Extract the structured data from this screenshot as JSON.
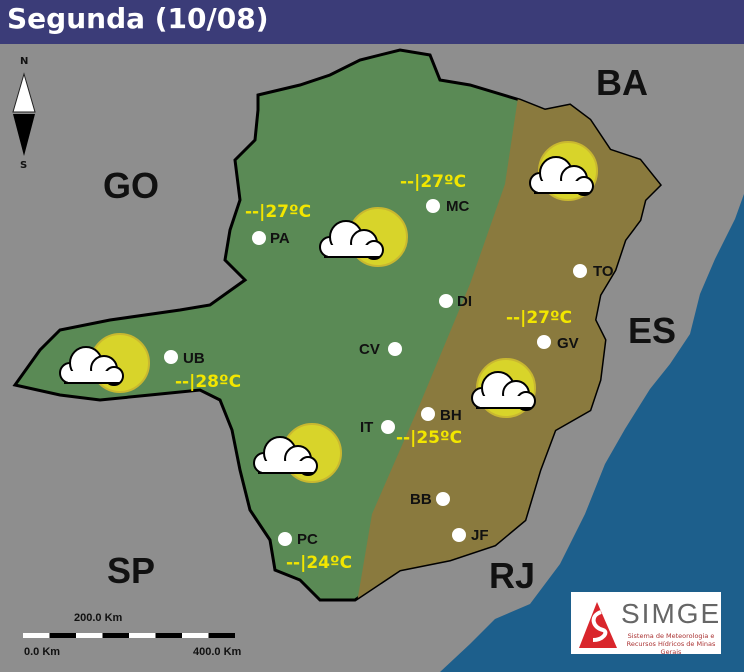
{
  "title": "Segunda (10/08)",
  "compass": {
    "north": "N",
    "south": "S"
  },
  "regions": [
    "GO",
    "BA",
    "ES",
    "SP",
    "RJ"
  ],
  "cities": [
    {
      "code": "PA",
      "temp": "--|27ºC",
      "weather": "sun-cloud"
    },
    {
      "code": "MC",
      "temp": "--|27ºC",
      "weather": "sun-cloud"
    },
    {
      "code": "DI"
    },
    {
      "code": "TO"
    },
    {
      "code": "CV"
    },
    {
      "code": "UB",
      "temp": "--|28ºC",
      "weather": "sun-cloud"
    },
    {
      "code": "GV",
      "temp": "--|27ºC",
      "weather": "sun-cloud"
    },
    {
      "code": "BH"
    },
    {
      "code": "IT",
      "temp": "--|25ºC",
      "weather": "sun-cloud"
    },
    {
      "code": "BB"
    },
    {
      "code": "JF"
    },
    {
      "code": "PC",
      "temp": "--|24ºC",
      "weather": "sun-cloud"
    }
  ],
  "scale": {
    "mid": "200.0 Km",
    "start": "0.0 Km",
    "end": "400.0 Km"
  },
  "logo": {
    "name": "SIMGE",
    "subtitle": "Sistema de Meteorologia e Recursos Hídricos de Minas Gerais"
  },
  "colors": {
    "header": "#3b3c78",
    "zone_green": "#5a8a55",
    "zone_brown": "#8a7a3e",
    "temp_text": "#f2e600",
    "ocean": "#1d5f8c"
  }
}
